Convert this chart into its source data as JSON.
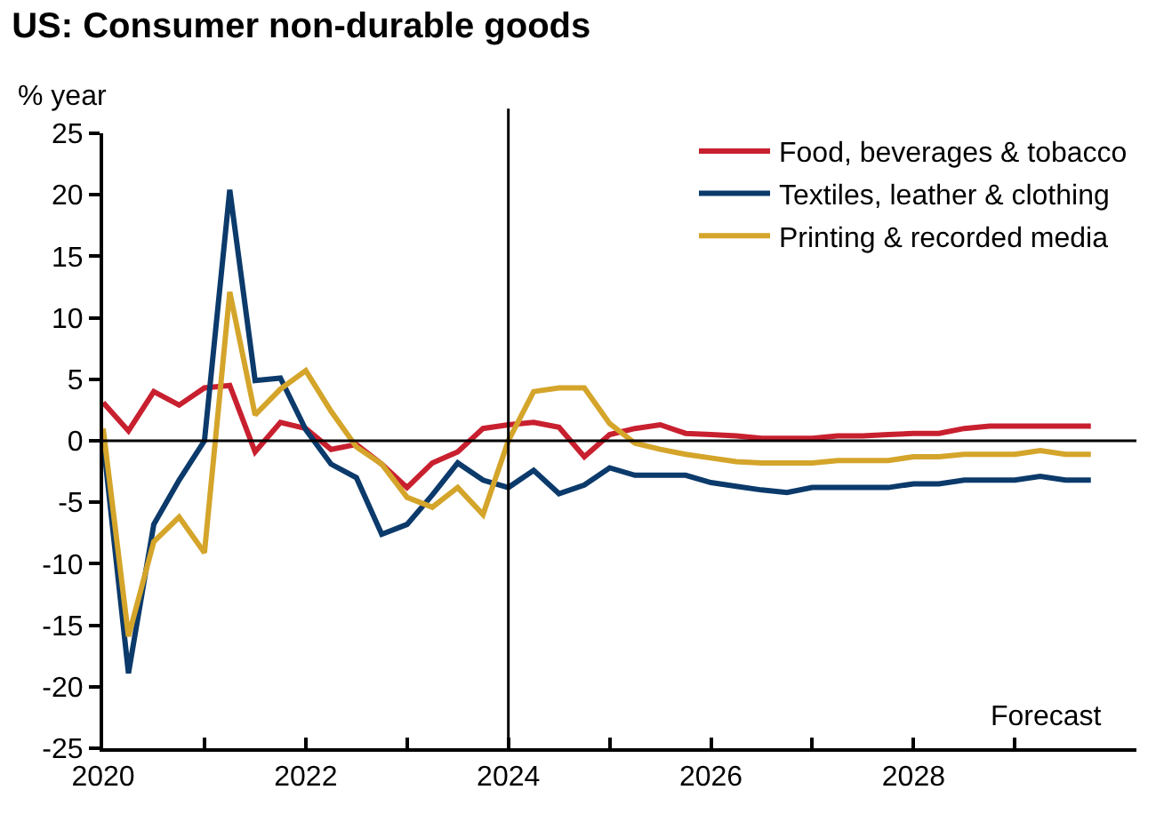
{
  "chart_data": {
    "type": "line",
    "title": "US: Consumer non-durable goods",
    "ylabel": "% year",
    "x": [
      2020,
      2020.25,
      2020.5,
      2020.75,
      2021,
      2021.25,
      2021.5,
      2021.75,
      2022,
      2022.25,
      2022.5,
      2022.75,
      2023,
      2023.25,
      2023.5,
      2023.75,
      2024,
      2024.25,
      2024.5,
      2024.75,
      2025,
      2025.25,
      2025.5,
      2025.75,
      2026,
      2026.25,
      2026.5,
      2026.75,
      2027,
      2027.25,
      2027.5,
      2027.75,
      2028,
      2028.25,
      2028.5,
      2028.75,
      2029,
      2029.25,
      2029.5,
      2029.75
    ],
    "series": [
      {
        "name": "Food, beverages & tobacco",
        "color": "#c8202f",
        "values": [
          3.1,
          0.8,
          4,
          2.9,
          4.3,
          4.5,
          -0.9,
          1.5,
          1,
          -0.7,
          -0.3,
          -1.9,
          -3.8,
          -1.8,
          -0.9,
          1,
          1.3,
          1.5,
          1.1,
          -1.3,
          0.5,
          1,
          1.3,
          0.6,
          0.5,
          0.4,
          0.2,
          0.2,
          0.2,
          0.4,
          0.4,
          0.5,
          0.6,
          0.6,
          1,
          1.2,
          1.2,
          1.2,
          1.2,
          1.2
        ]
      },
      {
        "name": "Textiles, leather & clothing",
        "color": "#0b3a6b",
        "values": [
          0,
          -18.9,
          -6.8,
          -3.2,
          0,
          20.4,
          4.9,
          5.1,
          0.9,
          -1.9,
          -3,
          -7.6,
          -6.8,
          -4.4,
          -1.8,
          -3.2,
          -3.8,
          -2.4,
          -4.3,
          -3.6,
          -2.2,
          -2.8,
          -2.8,
          -2.8,
          -3.4,
          -3.7,
          -4,
          -4.2,
          -3.8,
          -3.8,
          -3.8,
          -3.8,
          -3.5,
          -3.5,
          -3.2,
          -3.2,
          -3.2,
          -2.9,
          -3.2,
          -3.2
        ]
      },
      {
        "name": "Printing & recorded media",
        "color": "#d4a52a",
        "values": [
          1,
          -15.9,
          -8.2,
          -6.2,
          -9.1,
          12.1,
          2.1,
          4.2,
          5.7,
          2.4,
          -0.5,
          -1.9,
          -4.6,
          -5.4,
          -3.8,
          -6,
          0,
          4,
          4.3,
          4.3,
          1.4,
          -0.2,
          -0.7,
          -1.1,
          -1.4,
          -1.7,
          -1.8,
          -1.8,
          -1.8,
          -1.6,
          -1.6,
          -1.6,
          -1.3,
          -1.3,
          -1.1,
          -1.1,
          -1.1,
          -0.8,
          -1.1,
          -1.1
        ]
      }
    ],
    "xlim": [
      2020,
      2030.2
    ],
    "xticks": [
      2020,
      {
        "value": 2021,
        "label": null
      },
      2022,
      {
        "value": 2023,
        "label": null
      },
      2024,
      {
        "value": 2025,
        "label": null
      },
      2026,
      {
        "value": 2027,
        "label": null
      },
      2028,
      {
        "value": 2029,
        "label": null
      }
    ],
    "ylim": [
      -25,
      25
    ],
    "yticks": [
      -25,
      -20,
      -15,
      -10,
      -5,
      0,
      5,
      10,
      15,
      20,
      25
    ],
    "ref_lines": [
      {
        "axis": "x",
        "value": 2024,
        "color": "#000000"
      },
      {
        "axis": "y",
        "value": 0,
        "color": "#000000"
      }
    ],
    "annotations": [
      "Forecast"
    ],
    "legend": "top right"
  }
}
